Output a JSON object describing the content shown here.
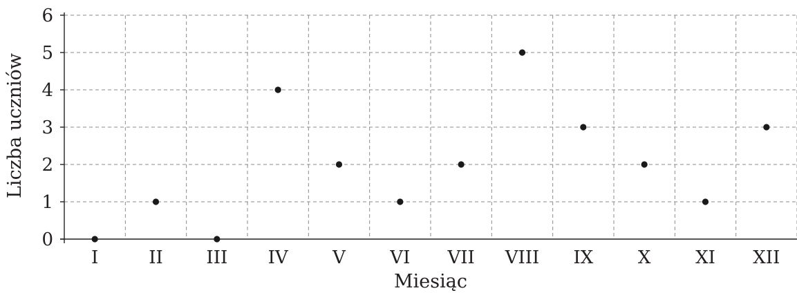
{
  "chart_data": {
    "type": "scatter",
    "title": "",
    "xlabel": "Miesiąc",
    "ylabel": "Liczba uczniów",
    "categories": [
      "I",
      "II",
      "III",
      "IV",
      "V",
      "VI",
      "VII",
      "VIII",
      "IX",
      "X",
      "XI",
      "XII"
    ],
    "values": [
      0,
      1,
      0,
      4,
      2,
      1,
      2,
      5,
      3,
      2,
      1,
      3
    ],
    "ylim": [
      0,
      6
    ],
    "yticks": [
      "0",
      "1",
      "2",
      "3",
      "4",
      "5",
      "6"
    ],
    "grid": true,
    "point_color": "#1a1a1a"
  }
}
